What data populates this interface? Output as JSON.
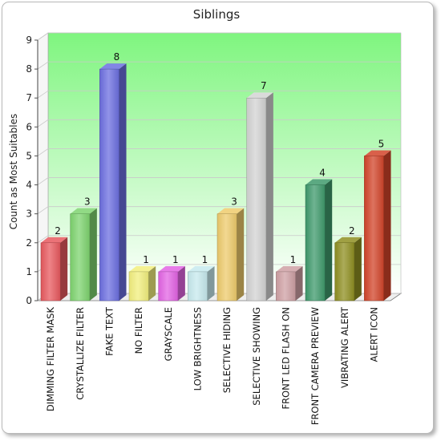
{
  "chart_data": {
    "type": "bar",
    "title": "Siblings",
    "xlabel": "",
    "ylabel": "Count as Most Suitables",
    "ylim": [
      0,
      9
    ],
    "yticks": [
      0,
      1,
      2,
      3,
      4,
      5,
      6,
      7,
      8,
      9
    ],
    "grid": true,
    "legend": "none",
    "categories": [
      "DIMMING FILTER MASK",
      "CRYSTALLIZE FILTER",
      "FAKE TEXT",
      "NO FILTER",
      "GRAYSCALE",
      "LOW BRIGHTNESS",
      "SELECTIVE HIDING",
      "SELECTIVE SHOWING",
      "FRONT LED FLASH ON",
      "FRONT CAMERA PREVIEW",
      "VIBRATING ALERT",
      "ALERT ICON"
    ],
    "values": [
      2,
      3,
      8,
      1,
      1,
      1,
      3,
      7,
      1,
      4,
      2,
      5
    ],
    "colors": [
      "#e8595f",
      "#7ed46f",
      "#6c6fe0",
      "#f2ef7e",
      "#e364e4",
      "#c7eaee",
      "#eecb6c",
      "#d3d3d3",
      "#cfa0a4",
      "#3f9a6c",
      "#8f8f22",
      "#d2442a"
    ],
    "plot_background": [
      "#7ff57f",
      "#ffffff"
    ]
  }
}
